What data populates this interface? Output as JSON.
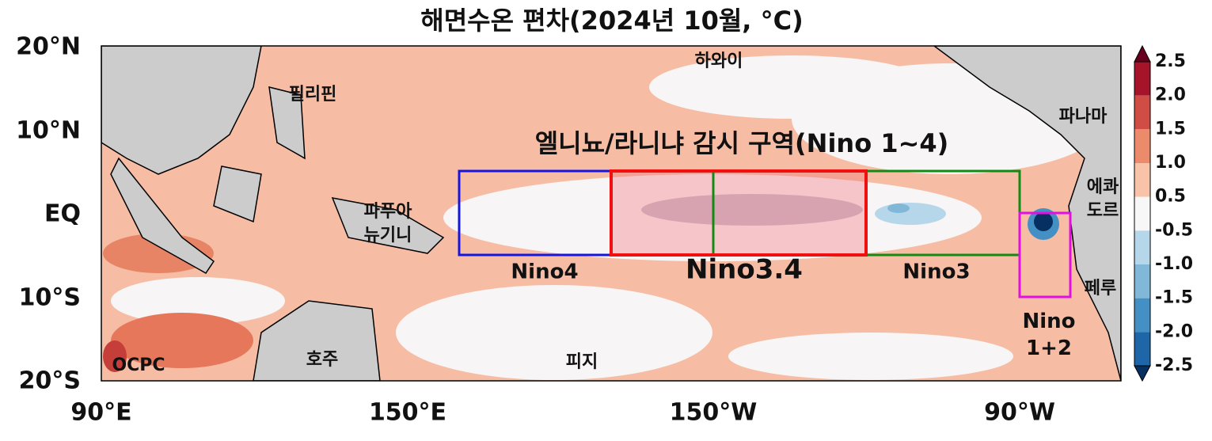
{
  "map": {
    "title": "해면수온 편차(2024년 10월, °C)",
    "subtitle": "엘니뇨/라니냐 감시 구역(Nino 1~4)",
    "xticks": [
      "90°E",
      "150°E",
      "150°W",
      "90°W"
    ],
    "yticks": [
      "20°N",
      "10°N",
      "EQ",
      "10°S",
      "20°S"
    ],
    "places": [
      "하와이",
      "필리핀",
      "파나마",
      "에콰도르",
      "파푸아 뉴기니",
      "페루",
      "호주",
      "피지",
      "OCPC"
    ],
    "regions": [
      "Nino4",
      "Nino3.4",
      "Nino3",
      "Nino 1+2"
    ],
    "colorbar": [
      "2.5",
      "2.0",
      "1.5",
      "1.0",
      "0.5",
      "-0.5",
      "-1.0",
      "-1.5",
      "-2.0",
      "-2.5"
    ]
  }
}
